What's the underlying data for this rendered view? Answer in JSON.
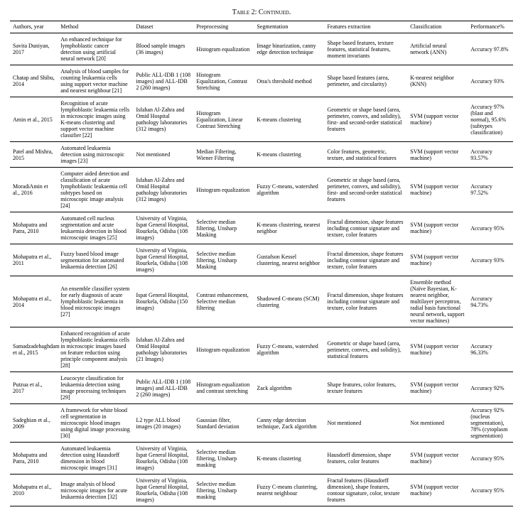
{
  "caption": "Table 2: Continued.",
  "columns": [
    "Authors, year",
    "Method",
    "Dataset",
    "Preprocessing",
    "Segmentation",
    "Features extraction",
    "Classification",
    "Performance%"
  ],
  "rows": [
    {
      "authors": "Savita Duniyan, 2017",
      "method": "An enhanced technique for lymphoblastic cancer detection using artificial neural network [20]",
      "dataset": "Blood sample images (36 images)",
      "preprocessing": "Histogram equalization",
      "segmentation": "Image binarization, canny edge detection technique",
      "features": "Shape based features, texture features, statistical features, moment invariants",
      "classification": "Artificial neural network (ANN)",
      "performance": "Accuracy 97.8%"
    },
    {
      "authors": "Chatap and Shibu, 2014",
      "method": "Analysis of blood samples for counting leukaemia cells using support vector machine and nearest neighbour [21]",
      "dataset": "Public ALL-IDB 1 (108 images) and ALL-IDB 2 (260 images)",
      "preprocessing": "Histogram Equalization, Contrast Stretching",
      "segmentation": "Otsu's threshold method",
      "features": "Shape based features (area, perimeter, and circularity)",
      "classification": "K-nearest neighbor (KNN)",
      "performance": "Accuracy 93%"
    },
    {
      "authors": "Amin et al., 2015",
      "method": "Recognition of acute lymphoblastic leukaemia cells in microscopic images using K-means clustering and support vector machine classifier [22]",
      "dataset": "Isfahan Al-Zahra and Omid Hospital pathology laboratories (312 images)",
      "preprocessing": "Histogram Equalization, Linear Contrast Stretching",
      "segmentation": "K-means clustering",
      "features": "Geometric or shape based (area, perimeter, convex, and solidity), first- and second-order statistical features",
      "classification": "SVM (support vector machine)",
      "performance": "Accuracy 97% (blast and normal), 95.6% (subtypes classification)"
    },
    {
      "authors": "Patel and Mishra, 2015",
      "method": "Automated leukaemia detection using microscopic images [23]",
      "dataset": "Not mentioned",
      "preprocessing": "Median Filtering, Wiener Filtering",
      "segmentation": "K-means clustering",
      "features": "Color features, geometric, texture, and statistical features",
      "classification": "SVM (support vector machine)",
      "performance": "Accuracy 93.57%"
    },
    {
      "authors": "MoradiAmin et al., 2016",
      "method": "Computer aided detection and classification of acute lymphoblastic leukaemia cell subtypes based on microscopic image analysis [24]",
      "dataset": "Isfahan Al-Zahra and Omid Hospital pathology laboratories (312 images)",
      "preprocessing": "Histogram equalization",
      "segmentation": "Fuzzy C-means, watershed algorithm",
      "features": "Geometric or shape based (area, perimeter, convex, and solidity), first- and second-order statistical features",
      "classification": "SVM (support vector machine)",
      "performance": "Accuracy 97.52%"
    },
    {
      "authors": "Mohapatra and Patra, 2010",
      "method": "Automated cell nucleus segmentation and acute leukaemia detection in blood microscopic images [25]",
      "dataset": "University of Virginia, Ispat General Hospital, Rourkela, Odisha (108 images)",
      "preprocessing": "Selective median filtering, Unsharp Masking",
      "segmentation": "K-means clustering, nearest neighbor",
      "features": "Fractal dimension, shape features including contour signature and texture, color features",
      "classification": "SVM (support vector machine)",
      "performance": "Accuracy 95%"
    },
    {
      "authors": "Mohapatra et al., 2011",
      "method": "Fuzzy based blood image segmentation for automated leukaemia detection [26]",
      "dataset": "University of Virginia, Ispat General Hospital, Rourkela, Odisha (108 images)",
      "preprocessing": "Selective median filtering, Unsharp Masking",
      "segmentation": "Gustafson Kessel clustering, nearest neighbor",
      "features": "Fractal dimension, shape features including contour signature and texture, color features",
      "classification": "SVM (support vector machine)",
      "performance": "Accuracy 93%"
    },
    {
      "authors": "Mohapatra et al., 2014",
      "method": "An ensemble classifier system for early diagnosis of acute lymphoblastic leukaemia in blood microscopic images [27]",
      "dataset": "Ispat General Hospital, Rourkela, Odisha (150 images)",
      "preprocessing": "Contrast enhancement, Selective median filtering",
      "segmentation": "Shadowed C-means (SCM) clustering",
      "features": "Fractal dimension, shape features including contour signature and texture, color features",
      "classification": "Ensemble method (Naïve Bayesian, K-nearest neighbor, multilayer perceptron, radial basis functional neural network, support vector machines)",
      "performance": "Accuracy 94.73%"
    },
    {
      "authors": "Samadzadehaghdam et al., 2015",
      "method": "Enhanced recognition of acute lymphoblastic leukaemia cells in microscopic images based on feature reduction using principle component analysis [28]",
      "dataset": "Isfahan Al-Zahra and Omid Hospital pathology laboratories (21 Images)",
      "preprocessing": "Histogram equalization",
      "segmentation": "Fuzzy C-means, watershed algorithm",
      "features": "Geometric or shape based (area, perimeter, convex, and solidity), statistical features",
      "classification": "SVM (support vector machine)",
      "performance": "Accuracy 96.33%"
    },
    {
      "authors": "Putzua et al., 2017",
      "method": "Leucocyte classification for leukaemia detection using image processing techniques [29]",
      "dataset": "Public ALL-IDB 1 (108 images) and ALL-IDB 2 (260 images)",
      "preprocessing": "Histogram equalization and contrast stretching",
      "segmentation": "Zack algorithm",
      "features": "Shape features, color features, texture features",
      "classification": "SVM (support vector machine)",
      "performance": "Accuracy 92%"
    },
    {
      "authors": "Sadeghian et al., 2009",
      "method": "A framework for white blood cell segmentation in microscopic blood images using digital image processing [30]",
      "dataset": "L2 type ALL blood images (20 images)",
      "preprocessing": "Gaussian filter, Standard deviation",
      "segmentation": "Canny edge detection technique, Zack algorithm",
      "features": "Not mentioned",
      "classification": "Not mentioned",
      "performance": "Accuracy 92% (nucleus segmentation), 78% (cytoplasm segmentation)"
    },
    {
      "authors": "Mohapatra and Patra, 2010",
      "method": "Automated leukaemia detection using Hausdorff dimension in blood microscopic images [31]",
      "dataset": "University of Virginia, Ispat General Hospital, Rourkela, Odisha (108 images)",
      "preprocessing": "Selective median filtering, Unsharp masking",
      "segmentation": "K-means clustering",
      "features": "Hausdorff dimension, shape features, color features",
      "classification": "SVM (support vector machine)",
      "performance": "Accuracy 95%"
    },
    {
      "authors": "Mohapatra et al., 2010",
      "method": "Image analysis of blood microscopic images for acute leukaemia detection [32]",
      "dataset": "University of Virginia, Ispat General Hospital, Rourkela, Odisha (108 images)",
      "preprocessing": "Selective median filtering, Unsharp masking",
      "segmentation": "Fuzzy C-means clustering, nearest neighbour",
      "features": "Fractal features (Hausdorff dimension), shape features, contour signature, color, texture features",
      "classification": "SVM (support vector machine)",
      "performance": "Accuracy 95%"
    }
  ]
}
